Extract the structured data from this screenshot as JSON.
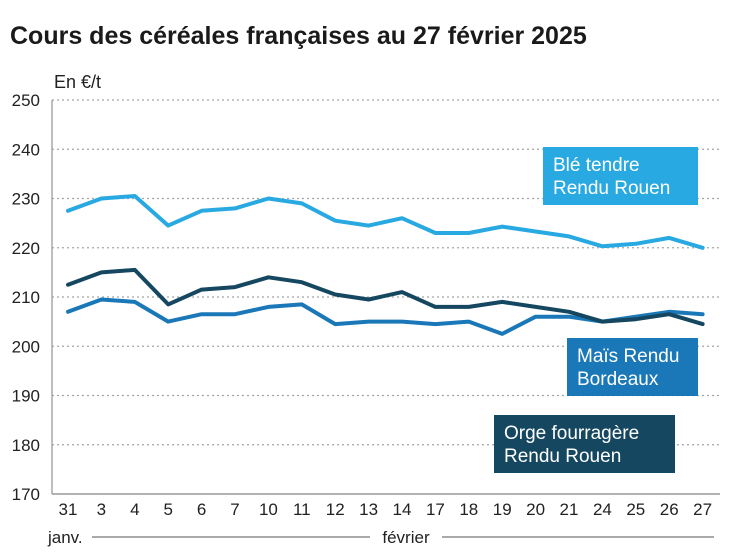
{
  "chart_data": {
    "type": "line",
    "title": "Cours des céréales françaises au 27 février 2025",
    "ylabel": "En €/t",
    "ylim": [
      170,
      250
    ],
    "yticks": [
      250,
      240,
      230,
      220,
      210,
      200,
      190,
      180,
      170
    ],
    "grid": true,
    "categories": [
      "31",
      "3",
      "4",
      "5",
      "6",
      "7",
      "10",
      "11",
      "12",
      "13",
      "14",
      "17",
      "18",
      "19",
      "20",
      "21",
      "24",
      "25",
      "26",
      "27"
    ],
    "month_labels": [
      "janv.",
      "février"
    ],
    "series": [
      {
        "name": "Blé tendre Rendu Rouen",
        "label_lines": [
          "Blé tendre",
          "Rendu Rouen"
        ],
        "color": "#29a9e1",
        "values": [
          227.5,
          230,
          230.5,
          224.5,
          227.5,
          228,
          230,
          229,
          225.5,
          224.5,
          226,
          223,
          223,
          224.3,
          223.3,
          222.3,
          220.3,
          220.8,
          222,
          220
        ]
      },
      {
        "name": "Maïs Rendu Bordeaux",
        "label_lines": [
          "Maïs Rendu",
          "Bordeaux"
        ],
        "color": "#1a78b8",
        "values": [
          207,
          209.5,
          209,
          205,
          206.5,
          206.5,
          208,
          208.5,
          204.5,
          205,
          205,
          204.5,
          205,
          202.5,
          206,
          206,
          205,
          206,
          207,
          206.5
        ]
      },
      {
        "name": "Orge fourragère Rendu Rouen",
        "label_lines": [
          "Orge fourragère",
          "Rendu Rouen"
        ],
        "color": "#154760",
        "values": [
          212.5,
          215,
          215.5,
          208.5,
          211.5,
          212,
          214,
          213,
          210.5,
          209.5,
          211,
          208,
          208,
          209,
          208,
          207,
          205,
          205.5,
          206.5,
          204.5
        ]
      }
    ]
  }
}
